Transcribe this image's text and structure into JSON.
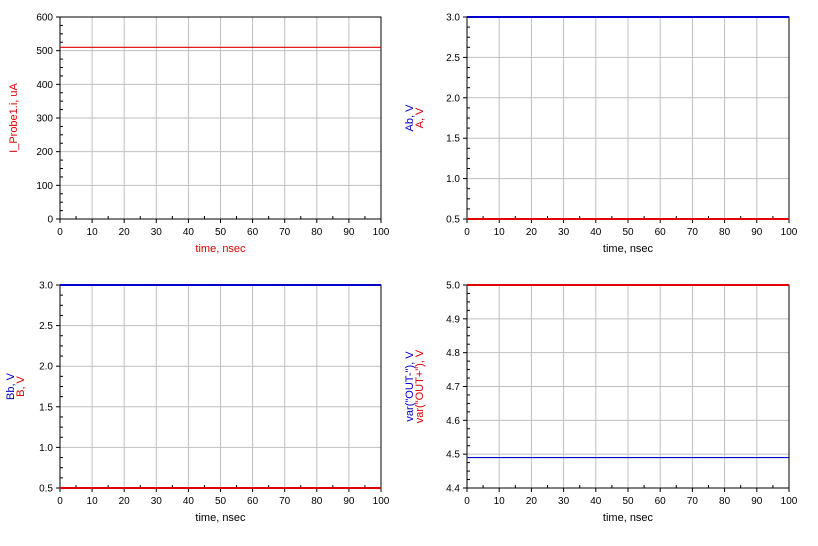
{
  "colors": {
    "red": "#e00000",
    "blue": "#0000cc",
    "grid": "#c0c0c0",
    "axis": "#000000"
  },
  "chart_data": [
    {
      "type": "line",
      "x_ticks": [
        "0",
        "10",
        "20",
        "30",
        "40",
        "50",
        "60",
        "70",
        "80",
        "90",
        "100"
      ],
      "y_ticks": [
        "0",
        "100",
        "200",
        "300",
        "400",
        "500",
        "600"
      ],
      "xlabel": "time, nsec",
      "xlabel_color": "red",
      "ylabels": [
        {
          "text": "I_Probe1.i, uA",
          "color": "red"
        }
      ],
      "xlim": [
        0,
        100
      ],
      "ylim": [
        0,
        600
      ],
      "grid": true,
      "series": [
        {
          "name": "I_Probe1.i",
          "color": "red",
          "x": [
            0,
            100
          ],
          "y": [
            510,
            510
          ]
        }
      ]
    },
    {
      "type": "line",
      "x_ticks": [
        "0",
        "10",
        "20",
        "30",
        "40",
        "50",
        "60",
        "70",
        "80",
        "90",
        "100"
      ],
      "y_ticks": [
        "0.5",
        "1.0",
        "1.5",
        "2.0",
        "2.5",
        "3.0"
      ],
      "xlabel": "time, nsec",
      "xlabel_color": "black",
      "ylabels": [
        {
          "text": "Ab, V",
          "color": "blue"
        },
        {
          "text": "A, V",
          "color": "red"
        }
      ],
      "xlim": [
        0,
        100
      ],
      "ylim": [
        0.5,
        3.0
      ],
      "grid": true,
      "series": [
        {
          "name": "Ab",
          "color": "blue",
          "x": [
            0,
            100
          ],
          "y": [
            3.0,
            3.0
          ]
        },
        {
          "name": "A",
          "color": "red",
          "x": [
            0,
            100
          ],
          "y": [
            0.5,
            0.5
          ]
        }
      ]
    },
    {
      "type": "line",
      "x_ticks": [
        "0",
        "10",
        "20",
        "30",
        "40",
        "50",
        "60",
        "70",
        "80",
        "90",
        "100"
      ],
      "y_ticks": [
        "0.5",
        "1.0",
        "1.5",
        "2.0",
        "2.5",
        "3.0"
      ],
      "xlabel": "time, nsec",
      "xlabel_color": "black",
      "ylabels": [
        {
          "text": "Bb, V",
          "color": "blue"
        },
        {
          "text": "B, V",
          "color": "red"
        }
      ],
      "xlim": [
        0,
        100
      ],
      "ylim": [
        0.5,
        3.0
      ],
      "grid": true,
      "series": [
        {
          "name": "Bb",
          "color": "blue",
          "x": [
            0,
            100
          ],
          "y": [
            3.0,
            3.0
          ]
        },
        {
          "name": "B",
          "color": "red",
          "x": [
            0,
            100
          ],
          "y": [
            0.5,
            0.5
          ]
        }
      ]
    },
    {
      "type": "line",
      "x_ticks": [
        "0",
        "10",
        "20",
        "30",
        "40",
        "50",
        "60",
        "70",
        "80",
        "90",
        "100"
      ],
      "y_ticks": [
        "4.4",
        "4.5",
        "4.6",
        "4.7",
        "4.8",
        "4.9",
        "5.0"
      ],
      "xlabel": "time, nsec",
      "xlabel_color": "black",
      "ylabels": [
        {
          "text": "var(\"OUT-\"), V",
          "color": "blue"
        },
        {
          "text": "var(\"OUT+\"), V",
          "color": "red"
        }
      ],
      "xlim": [
        0,
        100
      ],
      "ylim": [
        4.4,
        5.0
      ],
      "grid": true,
      "series": [
        {
          "name": "var(\"OUT+\")",
          "color": "red",
          "x": [
            0,
            100
          ],
          "y": [
            5.0,
            5.0
          ]
        },
        {
          "name": "var(\"OUT-\")",
          "color": "blue",
          "x": [
            0,
            100
          ],
          "y": [
            4.49,
            4.49
          ]
        }
      ]
    }
  ]
}
